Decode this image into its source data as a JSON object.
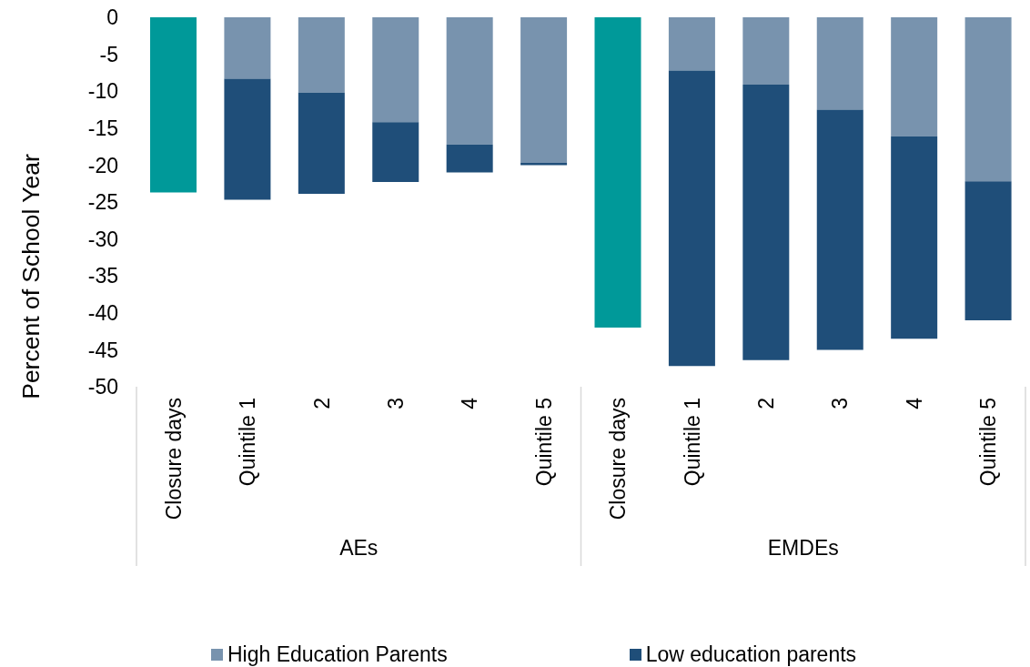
{
  "chart_data": {
    "type": "bar",
    "stacked": true,
    "categories": [
      "Closure days",
      "Quintile 1",
      "2",
      "3",
      "4",
      "Quintile 5",
      "Closure days",
      "Quintile 1",
      "2",
      "3",
      "4",
      "Quintile 5"
    ],
    "series": [
      {
        "color": "#009999",
        "values": [
          -23.7,
          null,
          null,
          null,
          null,
          null,
          -42.0,
          null,
          null,
          null,
          null,
          null
        ]
      },
      {
        "name": "High Education Parents",
        "color": "#7893ae",
        "values": [
          null,
          -8.3,
          -10.2,
          -14.2,
          -17.2,
          -19.7,
          null,
          -7.2,
          -9.1,
          -12.5,
          -16.1,
          -22.2
        ]
      },
      {
        "name": "Low education parents",
        "color": "#1f4e79",
        "values": [
          null,
          -16.4,
          -13.7,
          -8.1,
          -3.8,
          -0.3,
          null,
          -40.0,
          -37.3,
          -32.5,
          -27.4,
          -18.8
        ]
      }
    ],
    "ylabel": "Percent of School Year",
    "ylim": [
      -50,
      0
    ],
    "yticks": [
      0,
      -5,
      -10,
      -15,
      -20,
      -25,
      -30,
      -35,
      -40,
      -45,
      -50
    ],
    "annotations": [
      "AEs",
      "EMDEs"
    ],
    "legend": "bottom"
  }
}
